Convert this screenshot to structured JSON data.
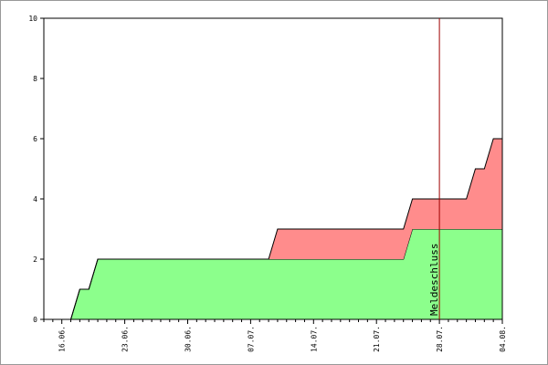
{
  "chart_data": {
    "type": "stacked-area",
    "categories": [
      null,
      null,
      "16.06.",
      null,
      null,
      null,
      null,
      null,
      null,
      "23.06.",
      null,
      null,
      null,
      null,
      null,
      null,
      "30.06.",
      null,
      null,
      null,
      null,
      null,
      null,
      "07.07.",
      null,
      null,
      null,
      null,
      null,
      null,
      "14.07.",
      null,
      null,
      null,
      null,
      null,
      null,
      "21.07.",
      null,
      null,
      null,
      null,
      null,
      null,
      "28.07.",
      null,
      null,
      null,
      null,
      null,
      null,
      "04.08."
    ],
    "series": [
      {
        "color": "#8cff8c",
        "values": [
          0,
          0,
          0,
          0,
          1,
          1,
          2,
          2,
          2,
          2,
          2,
          2,
          2,
          2,
          2,
          2,
          2,
          2,
          2,
          2,
          2,
          2,
          2,
          2,
          2,
          2,
          2,
          2,
          2,
          2,
          2,
          2,
          2,
          2,
          2,
          2,
          2,
          2,
          2,
          2,
          2,
          3,
          3,
          3,
          3,
          3,
          3,
          3,
          3,
          3,
          3,
          3
        ]
      },
      {
        "color": "#ff8c8c",
        "values": [
          0,
          0,
          0,
          0,
          0,
          0,
          0,
          0,
          0,
          0,
          0,
          0,
          0,
          0,
          0,
          0,
          0,
          0,
          0,
          0,
          0,
          0,
          0,
          0,
          0,
          0,
          1,
          1,
          1,
          1,
          1,
          1,
          1,
          1,
          1,
          1,
          1,
          1,
          1,
          1,
          1,
          1,
          1,
          1,
          1,
          1,
          1,
          1,
          2,
          2,
          3,
          3
        ]
      }
    ],
    "ylim": [
      0,
      10
    ],
    "yticks": [
      0,
      2,
      4,
      6,
      8,
      10
    ],
    "marker": {
      "x": "28.07.",
      "label": "Meldeschluss",
      "color": "#a00000"
    }
  }
}
